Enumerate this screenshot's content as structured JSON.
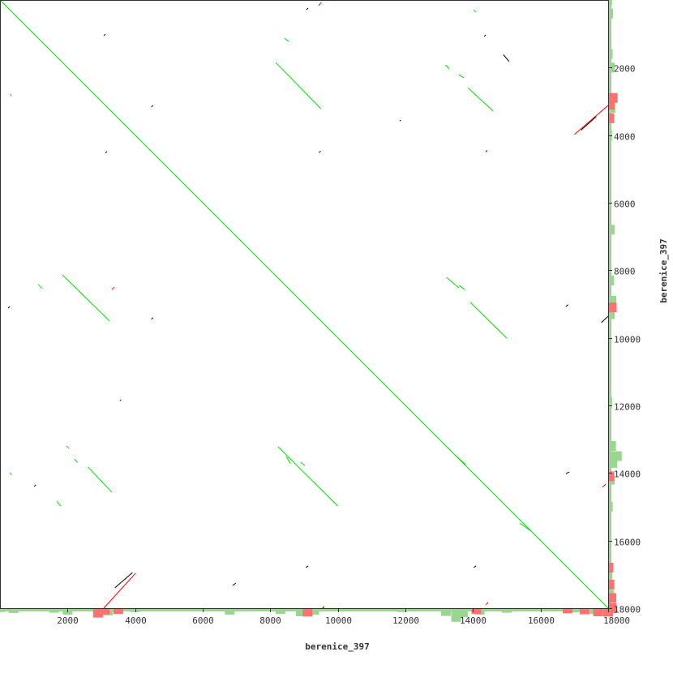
{
  "chart_data": {
    "type": "dotplot",
    "xlabel": "berenice_397",
    "ylabel": "berenice_397",
    "xlim": [
      0,
      18000
    ],
    "ylim": [
      0,
      18000
    ],
    "x_ticks": [
      "2000",
      "4000",
      "6000",
      "8000",
      "10000",
      "12000",
      "14000",
      "16000",
      "18000"
    ],
    "y_ticks": [
      "2000",
      "4000",
      "6000",
      "8000",
      "10000",
      "12000",
      "14000",
      "16000",
      "18000"
    ],
    "colors": {
      "forward": "#00e000",
      "reverse": "#ff0000",
      "other": "#000000",
      "hist_forward": "#99d690",
      "hist_reverse": "#ff7070",
      "frame": "#333333"
    },
    "forward_matches": [
      [
        0,
        0,
        18000,
        18000
      ],
      [
        8160,
        1850,
        9500,
        3220
      ],
      [
        13850,
        2600,
        14600,
        3290
      ],
      [
        1850,
        8140,
        3240,
        9500
      ],
      [
        13220,
        8210,
        13580,
        8520
      ],
      [
        13920,
        8950,
        15000,
        10010
      ],
      [
        2600,
        13820,
        3310,
        14570
      ],
      [
        8230,
        13220,
        10000,
        14980
      ],
      [
        15380,
        15480,
        15720,
        15720
      ],
      [
        8420,
        1130,
        8550,
        1230
      ],
      [
        13180,
        1920,
        13300,
        2040
      ],
      [
        13580,
        2210,
        13730,
        2300
      ],
      [
        1130,
        8420,
        1250,
        8540
      ],
      [
        300,
        2780,
        340,
        2850
      ],
      [
        14020,
        290,
        14090,
        360
      ],
      [
        1970,
        13200,
        2040,
        13270
      ],
      [
        2200,
        13590,
        2300,
        13690
      ],
      [
        290,
        13990,
        340,
        14060
      ],
      [
        8470,
        13510,
        8600,
        13730
      ],
      [
        8900,
        13680,
        9020,
        13780
      ],
      [
        13590,
        8450,
        13750,
        8570
      ],
      [
        13470,
        13470,
        13780,
        13750
      ],
      [
        1680,
        14840,
        1800,
        14980
      ]
    ],
    "reverse_matches": [
      [
        17000,
        3980,
        18000,
        3120
      ],
      [
        3070,
        18000,
        4010,
        16970
      ],
      [
        9430,
        170,
        9510,
        70
      ],
      [
        14380,
        17900,
        14450,
        17830
      ],
      [
        17830,
        14420,
        17930,
        14330
      ],
      [
        3310,
        8570,
        3380,
        8500
      ]
    ],
    "other_matches": [
      [
        3070,
        1060,
        3120,
        1010
      ],
      [
        14330,
        1080,
        14380,
        1030
      ],
      [
        14900,
        1620,
        15070,
        1820
      ],
      [
        9070,
        290,
        9120,
        240
      ],
      [
        290,
        9070,
        240,
        9120
      ],
      [
        1060,
        14350,
        1010,
        14400
      ],
      [
        3550,
        11860,
        3580,
        11830
      ],
      [
        11860,
        3550,
        11830,
        3580
      ],
      [
        6890,
        17330,
        6980,
        17260
      ],
      [
        16750,
        14020,
        16850,
        13970
      ],
      [
        14020,
        16800,
        14090,
        16750
      ],
      [
        9050,
        16800,
        9120,
        16750
      ],
      [
        16750,
        9070,
        16820,
        9020
      ],
      [
        17800,
        9550,
        18000,
        9360
      ],
      [
        9550,
        18000,
        9600,
        17950
      ],
      [
        17200,
        3850,
        17650,
        3450
      ],
      [
        3400,
        17400,
        3920,
        16950
      ],
      [
        3120,
        4530,
        3170,
        4480
      ],
      [
        4530,
        3120,
        4480,
        3170
      ],
      [
        9450,
        4520,
        9490,
        4470
      ],
      [
        4480,
        9450,
        4530,
        9400
      ],
      [
        14380,
        4500,
        14420,
        4450
      ]
    ],
    "coverage_forward": [
      [
        0,
        0.2
      ],
      [
        400,
        0.5
      ],
      [
        1600,
        0.4
      ],
      [
        2000,
        1.0
      ],
      [
        2900,
        1.6
      ],
      [
        3200,
        1.2
      ],
      [
        4000,
        0.2
      ],
      [
        6800,
        1.0
      ],
      [
        8300,
        0.8
      ],
      [
        8900,
        1.5
      ],
      [
        9300,
        1.0
      ],
      [
        11900,
        0.2
      ],
      [
        13200,
        1.4
      ],
      [
        13500,
        3.2
      ],
      [
        13700,
        1.8
      ],
      [
        14200,
        1.0
      ],
      [
        15000,
        0.4
      ],
      [
        17000,
        0.3
      ],
      [
        17600,
        0.8
      ]
    ],
    "coverage_reverse": [
      [
        2900,
        1.9
      ],
      [
        3100,
        1.0
      ],
      [
        3500,
        0.8
      ],
      [
        9100,
        1.6
      ],
      [
        14100,
        0.8
      ],
      [
        16800,
        0.6
      ],
      [
        17300,
        0.9
      ],
      [
        17700,
        1.5
      ],
      [
        18000,
        1.6
      ]
    ]
  }
}
